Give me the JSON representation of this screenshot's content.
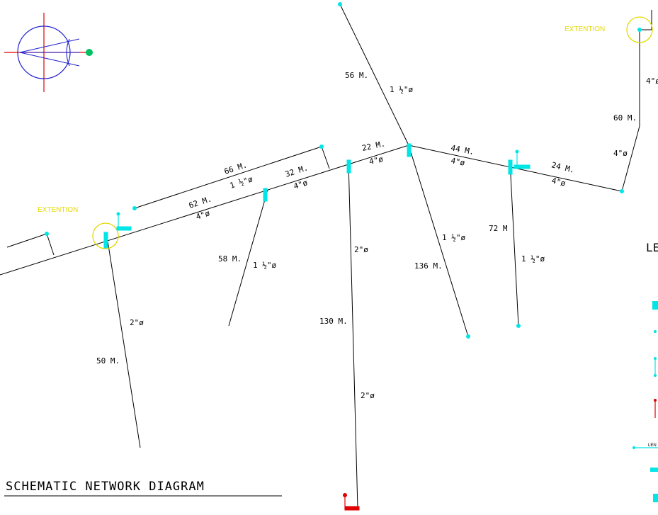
{
  "title": "SCHEMATIC NETWORK DIAGRAM",
  "extention_label": "EXTENTION",
  "legend_label": "LE",
  "legend_item_label": "LEN",
  "colors": {
    "pipe": "#000000",
    "node": "#00e5e5",
    "extention": "#e6d800",
    "north_arrow": "#2020d0",
    "crosshair": "#e00000",
    "valve": "#e00000",
    "marker": "#00c060"
  },
  "labels": {
    "seg_56m": "56 M.",
    "dia_56m": "1 ½\"ø",
    "seg_60m": "60 M.",
    "dia_60m": "4\"ø",
    "dia_top_right": "4\"ø",
    "seg_22m": "22 M.",
    "dia_22m": "4\"ø",
    "seg_44m": "44 M.",
    "dia_44m": "4\"ø",
    "seg_24m": "24 M.",
    "dia_24m": "4\"ø",
    "seg_66m": "66 M.",
    "dia_66m": "1 ½\"ø",
    "seg_32m": "32 M.",
    "dia_32m": "4\"ø",
    "seg_62m": "62 M.",
    "dia_62m": "4\"ø",
    "seg_58m": "58 M.",
    "dia_58m": "1 ½\"ø",
    "seg_130m": "130 M.",
    "dia_130m_a": "2\"ø",
    "dia_130m_b": "2\"ø",
    "seg_136m": "136 M.",
    "dia_136m": "1 ½\"ø",
    "seg_72m": "72 M",
    "dia_72m": "1 ½\"ø",
    "seg_50m": "50 M.",
    "dia_50m": "2\"ø"
  }
}
